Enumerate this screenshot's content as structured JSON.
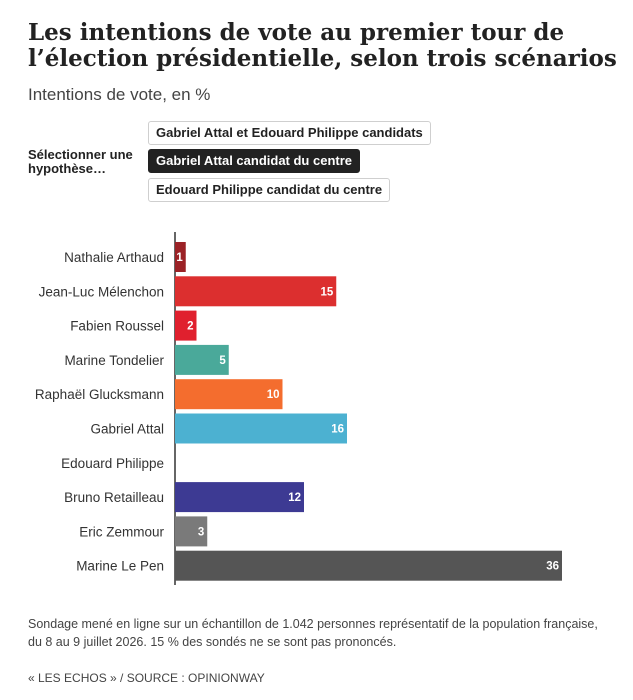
{
  "header": {
    "title": "Les intentions de vote au premier tour de l’élection présidentielle, selon trois scénarios",
    "subtitle": "Intentions de vote, en %"
  },
  "selector": {
    "label": "Sélectionner une hypothèse…",
    "options": [
      {
        "label": "Gabriel Attal et Edouard Philippe candidats",
        "active": false
      },
      {
        "label": "Gabriel Attal candidat du centre",
        "active": true
      },
      {
        "label": "Edouard Philippe candidat du centre",
        "active": false
      }
    ]
  },
  "chart_data": {
    "type": "bar",
    "orientation": "horizontal",
    "title": "",
    "xlabel": "",
    "ylabel": "",
    "xlim": [
      0,
      36
    ],
    "grid": false,
    "categories": [
      "Nathalie Arthaud",
      "Jean-Luc Mélenchon",
      "Fabien Roussel",
      "Marine Tondelier",
      "Raphaël Glucksmann",
      "Gabriel Attal",
      "Edouard Philippe",
      "Bruno Retailleau",
      "Eric Zemmour",
      "Marine Le Pen"
    ],
    "values": [
      1,
      15,
      2,
      5,
      10,
      16,
      null,
      12,
      3,
      36
    ],
    "colors": [
      "#9b2226",
      "#dc2f2f",
      "#e0202e",
      "#4aa99a",
      "#f46d2e",
      "#4cb1d1",
      "#cccccc",
      "#3d3a93",
      "#7a7a7a",
      "#555555"
    ]
  },
  "footer": {
    "note": "Sondage mené en ligne sur un échantillon de 1.042 personnes représentatif de la population française, du 8 au 9 juillet 2026. 15 % des sondés ne se sont pas prononcés.",
    "source": "« LES ECHOS » / SOURCE : OPINIONWAY"
  }
}
